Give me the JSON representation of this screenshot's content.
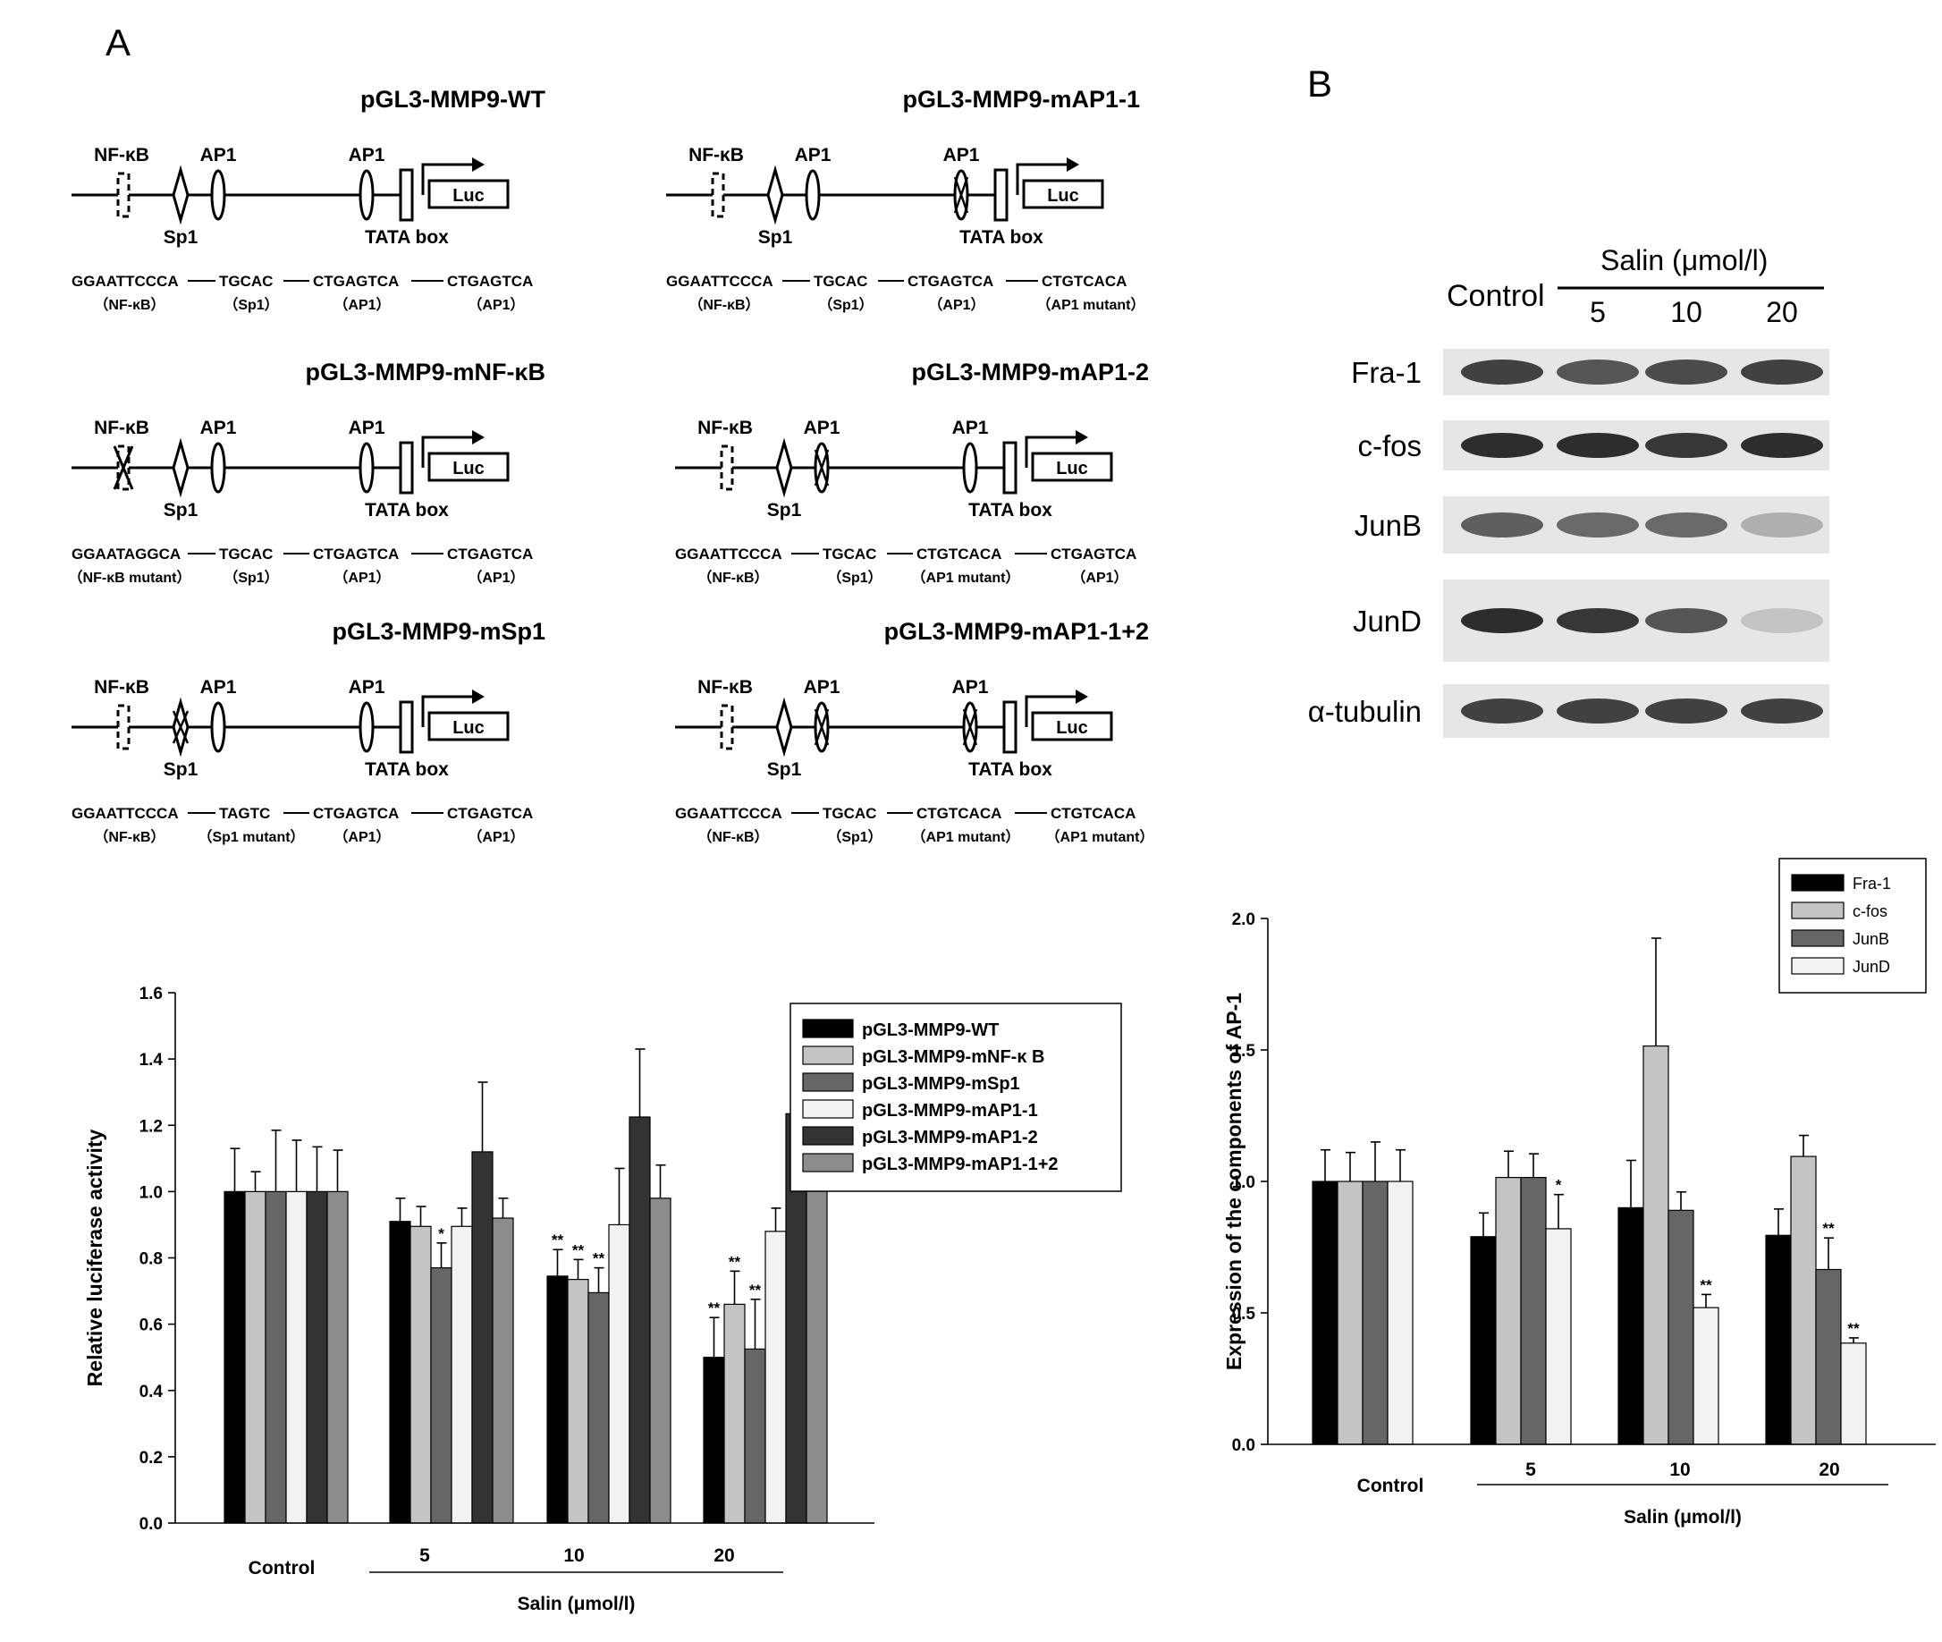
{
  "panels": {
    "a": "A",
    "b": "B"
  },
  "constructs": [
    {
      "title": "pGL3-MMP9-WT",
      "nfkb": "wt",
      "sp1": "wt",
      "ap1a": "wt",
      "ap1b": "wt",
      "seqs": [
        "GGAATTCCCA",
        "TGCAC",
        "CTGAGTCA",
        "CTGAGTCA"
      ],
      "seq_labels": [
        "（NF-κB）",
        "（Sp1）",
        "（AP1）",
        "（AP1）"
      ]
    },
    {
      "title": "pGL3-MMP9-mAP1-1",
      "nfkb": "wt",
      "sp1": "wt",
      "ap1a": "wt",
      "ap1b": "mut",
      "seqs": [
        "GGAATTCCCA",
        "TGCAC",
        "CTGAGTCA",
        "CTGTCACA"
      ],
      "seq_labels": [
        "（NF-κB）",
        "（Sp1）",
        "（AP1）",
        "（AP1 mutant）"
      ]
    },
    {
      "title": "pGL3-MMP9-mNF-κB",
      "nfkb": "mut",
      "sp1": "wt",
      "ap1a": "wt",
      "ap1b": "wt",
      "seqs": [
        "GGAATAGGCA",
        "TGCAC",
        "CTGAGTCA",
        "CTGAGTCA"
      ],
      "seq_labels": [
        "（NF-κB mutant）",
        "（Sp1）",
        "（AP1）",
        "（AP1）"
      ]
    },
    {
      "title": "pGL3-MMP9-mAP1-2",
      "nfkb": "wt",
      "sp1": "wt",
      "ap1a": "mut",
      "ap1b": "wt",
      "seqs": [
        "GGAATTCCCA",
        "TGCAC",
        "CTGTCACA",
        "CTGAGTCA"
      ],
      "seq_labels": [
        "（NF-κB）",
        "（Sp1）",
        "（AP1 mutant）",
        "（AP1）"
      ]
    },
    {
      "title": "pGL3-MMP9-mSp1",
      "nfkb": "wt",
      "sp1": "mut",
      "ap1a": "wt",
      "ap1b": "wt",
      "seqs": [
        "GGAATTCCCA",
        "TAGTC",
        "CTGAGTCA",
        "CTGAGTCA"
      ],
      "seq_labels": [
        "（NF-κB）",
        "（Sp1 mutant）",
        "（AP1）",
        "（AP1）"
      ]
    },
    {
      "title": "pGL3-MMP9-mAP1-1+2",
      "nfkb": "wt",
      "sp1": "wt",
      "ap1a": "mut",
      "ap1b": "mut",
      "seqs": [
        "GGAATTCCCA",
        "TGCAC",
        "CTGTCACA",
        "CTGTCACA"
      ],
      "seq_labels": [
        "（NF-κB）",
        "（Sp1）",
        "（AP1 mutant）",
        "（AP1 mutant）"
      ]
    }
  ],
  "diagram_labels": {
    "nfkb": "NF-κB",
    "ap1": "AP1",
    "sp1": "Sp1",
    "tata": "TATA box",
    "luc": "Luc"
  },
  "blot": {
    "control": "Control",
    "salin": "Salin (μmol/l)",
    "doses": [
      "5",
      "10",
      "20"
    ],
    "rows": [
      {
        "label": "Fra-1",
        "intensity": [
          0.85,
          0.75,
          0.8,
          0.85
        ]
      },
      {
        "label": "c-fos",
        "intensity": [
          0.95,
          0.95,
          0.9,
          0.95
        ]
      },
      {
        "label": "JunB",
        "intensity": [
          0.7,
          0.65,
          0.65,
          0.3
        ]
      },
      {
        "label": "JunD",
        "intensity": [
          0.95,
          0.9,
          0.75,
          0.2
        ]
      },
      {
        "label": "α-tubulin",
        "intensity": [
          0.85,
          0.85,
          0.85,
          0.85
        ]
      }
    ]
  },
  "chart_data": [
    {
      "type": "bar",
      "categories": [
        "Control",
        "5",
        "10",
        "20"
      ],
      "xlabel": "Salin (μmol/l)",
      "ylabel": "Relative luciferase activity",
      "ylim": [
        0,
        1.6
      ],
      "yticks": [
        0.0,
        0.2,
        0.4,
        0.6,
        0.8,
        1.0,
        1.2,
        1.4,
        1.6
      ],
      "grid": false,
      "legend_position": "top-right",
      "series": [
        {
          "name": "pGL3-MMP9-WT",
          "color": "#000000",
          "values": [
            1.0,
            0.91,
            0.745,
            0.5
          ],
          "errors": [
            0.13,
            0.07,
            0.08,
            0.12
          ],
          "sig": [
            "",
            "",
            "**",
            "**"
          ]
        },
        {
          "name": "pGL3-MMP9-mNF-κ B",
          "color": "#c4c4c4",
          "values": [
            1.0,
            0.895,
            0.735,
            0.66
          ],
          "errors": [
            0.06,
            0.06,
            0.06,
            0.1
          ],
          "sig": [
            "",
            "",
            "**",
            "**"
          ]
        },
        {
          "name": "pGL3-MMP9-mSp1",
          "color": "#666666",
          "values": [
            1.0,
            0.77,
            0.695,
            0.525
          ],
          "errors": [
            0.185,
            0.075,
            0.075,
            0.15
          ],
          "sig": [
            "",
            "*",
            "**",
            "**"
          ]
        },
        {
          "name": "pGL3-MMP9-mAP1-1",
          "color": "#f2f2f2",
          "values": [
            1.0,
            0.895,
            0.9,
            0.88
          ],
          "errors": [
            0.155,
            0.055,
            0.17,
            0.07
          ],
          "sig": [
            "",
            "",
            "",
            ""
          ]
        },
        {
          "name": "pGL3-MMP9-mAP1-2",
          "color": "#333333",
          "values": [
            1.0,
            1.12,
            1.225,
            1.235
          ],
          "errors": [
            0.135,
            0.21,
            0.205,
            0.11
          ],
          "sig": [
            "",
            "",
            "",
            ""
          ]
        },
        {
          "name": "pGL3-MMP9-mAP1-1+2",
          "color": "#8c8c8c",
          "values": [
            1.0,
            0.92,
            0.98,
            1.005
          ],
          "errors": [
            0.125,
            0.06,
            0.1,
            0.07
          ],
          "sig": [
            "",
            "",
            "",
            ""
          ]
        }
      ]
    },
    {
      "type": "bar",
      "categories": [
        "Control",
        "5",
        "10",
        "20"
      ],
      "xlabel": "Salin (μmol/l)",
      "ylabel": "Expression of the components of AP-1",
      "ylim": [
        0,
        2.0
      ],
      "yticks": [
        0.0,
        0.5,
        1.0,
        1.5,
        2.0
      ],
      "grid": false,
      "legend_position": "top-right",
      "series": [
        {
          "name": "Fra-1",
          "color": "#000000",
          "values": [
            1.0,
            0.79,
            0.9,
            0.795
          ],
          "errors": [
            0.12,
            0.09,
            0.18,
            0.1
          ],
          "sig": [
            "",
            "",
            "",
            ""
          ]
        },
        {
          "name": "c-fos",
          "color": "#c4c4c4",
          "values": [
            1.0,
            1.015,
            1.515,
            1.095
          ],
          "errors": [
            0.11,
            0.1,
            0.41,
            0.08
          ],
          "sig": [
            "",
            "",
            "",
            ""
          ]
        },
        {
          "name": "JunB",
          "color": "#666666",
          "values": [
            1.0,
            1.015,
            0.89,
            0.665
          ],
          "errors": [
            0.15,
            0.09,
            0.07,
            0.12
          ],
          "sig": [
            "",
            "",
            "",
            "**"
          ]
        },
        {
          "name": "JunD",
          "color": "#f2f2f2",
          "values": [
            1.0,
            0.82,
            0.52,
            0.385
          ],
          "errors": [
            0.12,
            0.13,
            0.05,
            0.02
          ],
          "sig": [
            "",
            "*",
            "**",
            "**"
          ]
        }
      ]
    }
  ]
}
